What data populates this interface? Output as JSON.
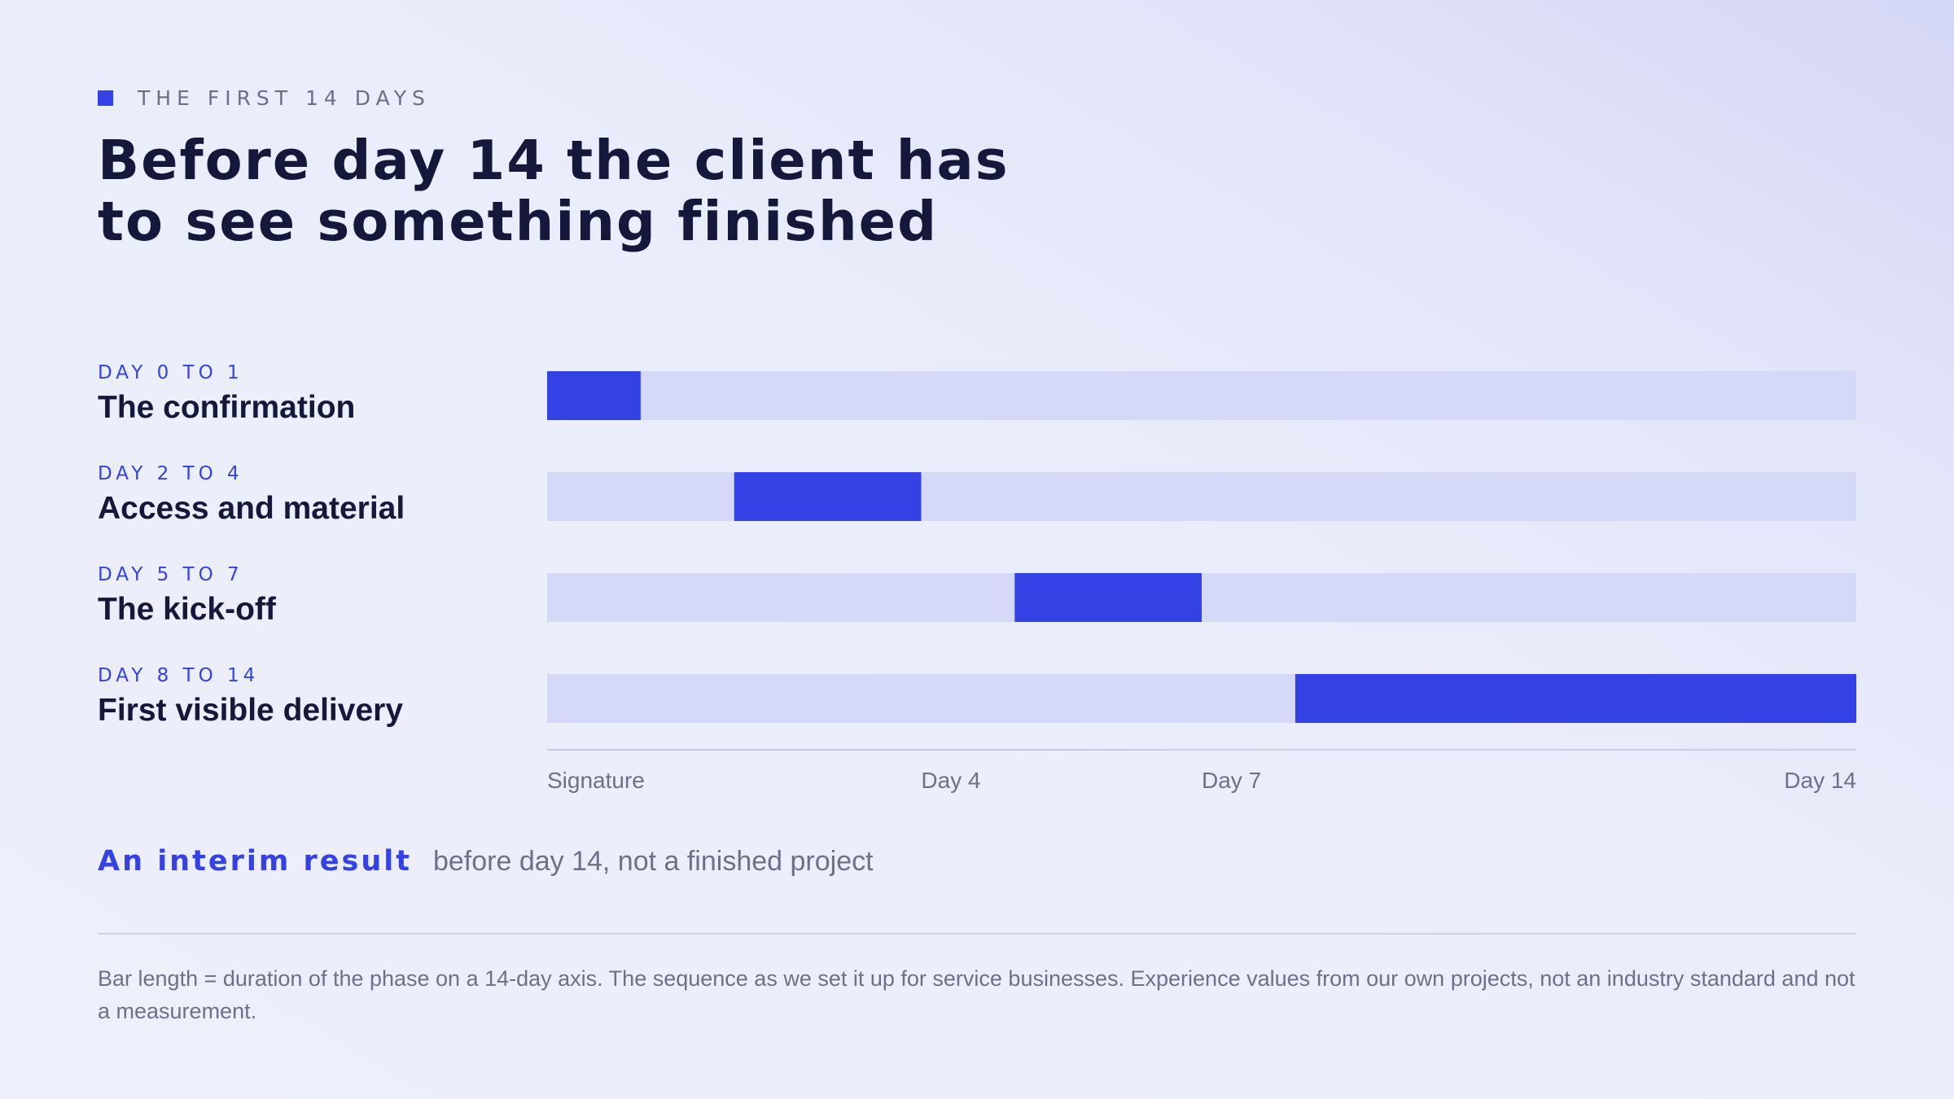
{
  "eyebrow": "THE FIRST 14 DAYS",
  "title": "Before day 14 the client has\nto see something finished",
  "colors": {
    "accent": "#3441e4",
    "track": "#d5d8f6",
    "text": "#15173b",
    "muted": "#6e7088"
  },
  "chart_data": {
    "type": "bar",
    "orientation": "horizontal",
    "xlim": [
      0,
      14
    ],
    "phases": [
      {
        "range": "DAY 0 TO 1",
        "name": "The confirmation",
        "start": 0,
        "end": 1
      },
      {
        "range": "DAY 2 TO 4",
        "name": "Access and material",
        "start": 2,
        "end": 4
      },
      {
        "range": "DAY 5 TO 7",
        "name": "The kick-off",
        "start": 5,
        "end": 7
      },
      {
        "range": "DAY 8 TO 14",
        "name": "First visible delivery",
        "start": 8,
        "end": 14
      }
    ],
    "ticks": [
      {
        "value": 0,
        "label": "Signature"
      },
      {
        "value": 4,
        "label": "Day 4"
      },
      {
        "value": 7,
        "label": "Day 7"
      },
      {
        "value": 14,
        "label": "Day 14"
      }
    ],
    "grid": false
  },
  "callout": {
    "strong": "An interim result",
    "rest": "before day 14, not a finished project"
  },
  "footnote": "Bar length = duration of the phase on a 14-day axis. The sequence as we set it up for service businesses. Experience values from our own projects, not an industry standard and not a measurement."
}
